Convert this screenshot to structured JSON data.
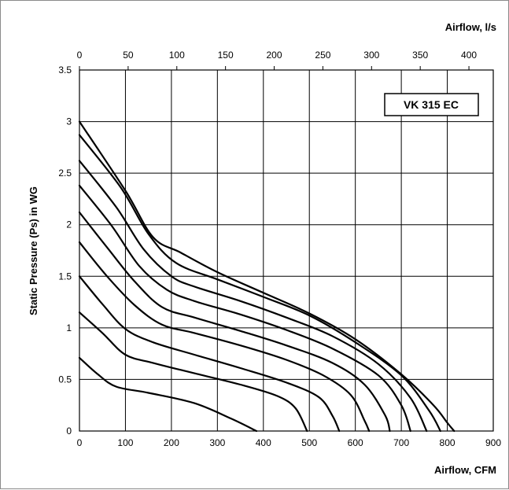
{
  "chart_data": {
    "type": "line",
    "model_label": "VK 315 EC",
    "xlabel_bottom": "Airflow, CFM",
    "xlabel_top": "Airflow, l/s",
    "ylabel": "Static Pressure (Ps) in  WG",
    "xlim": [
      0,
      900
    ],
    "ylim": [
      0,
      3.5
    ],
    "top_xlim": [
      0,
      425
    ],
    "x_ticks": [
      "0",
      "100",
      "200",
      "300",
      "400",
      "500",
      "600",
      "700",
      "800",
      "900"
    ],
    "top_x_ticks": [
      "0",
      "50",
      "100",
      "150",
      "200",
      "250",
      "300",
      "350",
      "400"
    ],
    "y_ticks": [
      "0",
      "0.5",
      "1",
      "1.5",
      "2",
      "2.5",
      "3",
      "3.5"
    ],
    "grid": true,
    "series": [
      {
        "points": [
          [
            0,
            0.71
          ],
          [
            40,
            0.55
          ],
          [
            80,
            0.43
          ],
          [
            150,
            0.37
          ],
          [
            250,
            0.27
          ],
          [
            330,
            0.12
          ],
          [
            385,
            0
          ]
        ]
      },
      {
        "points": [
          [
            0,
            1.15
          ],
          [
            50,
            0.95
          ],
          [
            100,
            0.74
          ],
          [
            160,
            0.66
          ],
          [
            250,
            0.56
          ],
          [
            350,
            0.45
          ],
          [
            430,
            0.34
          ],
          [
            470,
            0.22
          ],
          [
            495,
            0
          ]
        ]
      },
      {
        "points": [
          [
            0,
            1.5
          ],
          [
            50,
            1.23
          ],
          [
            100,
            0.99
          ],
          [
            160,
            0.86
          ],
          [
            250,
            0.74
          ],
          [
            350,
            0.61
          ],
          [
            450,
            0.47
          ],
          [
            520,
            0.33
          ],
          [
            550,
            0.15
          ],
          [
            565,
            0
          ]
        ]
      },
      {
        "points": [
          [
            0,
            1.83
          ],
          [
            60,
            1.5
          ],
          [
            120,
            1.22
          ],
          [
            180,
            1.03
          ],
          [
            250,
            0.95
          ],
          [
            350,
            0.83
          ],
          [
            450,
            0.69
          ],
          [
            530,
            0.54
          ],
          [
            590,
            0.35
          ],
          [
            620,
            0.1
          ],
          [
            630,
            0
          ]
        ]
      },
      {
        "points": [
          [
            0,
            2.12
          ],
          [
            60,
            1.78
          ],
          [
            120,
            1.45
          ],
          [
            180,
            1.2
          ],
          [
            250,
            1.1
          ],
          [
            350,
            0.97
          ],
          [
            450,
            0.83
          ],
          [
            550,
            0.66
          ],
          [
            620,
            0.45
          ],
          [
            665,
            0.15
          ],
          [
            675,
            0
          ]
        ]
      },
      {
        "points": [
          [
            0,
            2.38
          ],
          [
            70,
            1.99
          ],
          [
            130,
            1.6
          ],
          [
            190,
            1.37
          ],
          [
            250,
            1.26
          ],
          [
            350,
            1.13
          ],
          [
            450,
            0.98
          ],
          [
            550,
            0.8
          ],
          [
            650,
            0.54
          ],
          [
            700,
            0.25
          ],
          [
            720,
            0
          ]
        ]
      },
      {
        "points": [
          [
            0,
            2.62
          ],
          [
            80,
            2.17
          ],
          [
            140,
            1.76
          ],
          [
            200,
            1.5
          ],
          [
            250,
            1.4
          ],
          [
            350,
            1.26
          ],
          [
            450,
            1.1
          ],
          [
            550,
            0.92
          ],
          [
            650,
            0.65
          ],
          [
            720,
            0.32
          ],
          [
            755,
            0
          ]
        ]
      },
      {
        "points": [
          [
            0,
            2.87
          ],
          [
            90,
            2.36
          ],
          [
            150,
            1.91
          ],
          [
            210,
            1.63
          ],
          [
            300,
            1.47
          ],
          [
            400,
            1.3
          ],
          [
            500,
            1.12
          ],
          [
            600,
            0.86
          ],
          [
            700,
            0.54
          ],
          [
            760,
            0.2
          ],
          [
            785,
            0
          ]
        ]
      },
      {
        "points": [
          [
            0,
            3.0
          ],
          [
            100,
            2.33
          ],
          [
            160,
            1.88
          ],
          [
            220,
            1.73
          ],
          [
            300,
            1.54
          ],
          [
            400,
            1.34
          ],
          [
            500,
            1.14
          ],
          [
            600,
            0.89
          ],
          [
            700,
            0.55
          ],
          [
            770,
            0.25
          ],
          [
            800,
            0.08
          ],
          [
            815,
            0
          ]
        ]
      }
    ]
  }
}
